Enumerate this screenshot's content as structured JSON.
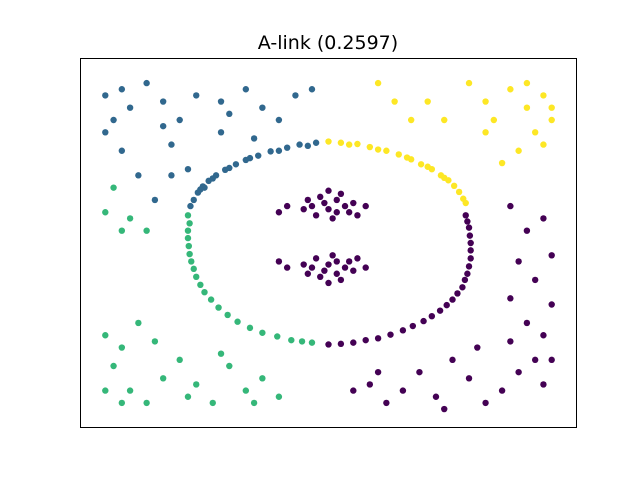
{
  "chart_data": {
    "type": "scatter",
    "title": "A-link (0.2597)",
    "xlabel": "",
    "ylabel": "",
    "xlim": [
      -3,
      3
    ],
    "ylim": [
      -3,
      3
    ],
    "x_ticks": [],
    "y_ticks": [],
    "grid": false,
    "legend": "none",
    "colors": {
      "cluster_purple": "#440154",
      "cluster_blue": "#31688e",
      "cluster_green": "#35b779",
      "cluster_yellow": "#fde725"
    },
    "series": [
      {
        "color_key": "cluster_blue",
        "points": [
          [
            -2.7,
            2.4
          ],
          [
            -2.5,
            2.5
          ],
          [
            -2.4,
            2.2
          ],
          [
            -2.2,
            2.6
          ],
          [
            -2.0,
            2.3
          ],
          [
            -1.8,
            2.0
          ],
          [
            -1.6,
            2.4
          ],
          [
            -1.3,
            2.3
          ],
          [
            -1.0,
            2.5
          ],
          [
            -0.8,
            2.2
          ],
          [
            -0.6,
            2.0
          ],
          [
            -0.4,
            2.4
          ],
          [
            -0.2,
            2.5
          ],
          [
            -2.7,
            1.8
          ],
          [
            -2.5,
            1.5
          ],
          [
            -2.3,
            1.1
          ],
          [
            -2.1,
            0.7
          ],
          [
            -1.9,
            1.6
          ],
          [
            -1.7,
            1.2
          ],
          [
            -1.5,
            0.9
          ],
          [
            -1.3,
            1.8
          ],
          [
            -2.6,
            2.0
          ],
          [
            -2.0,
            1.9
          ],
          [
            -1.9,
            1.1
          ],
          [
            -1.2,
            2.1
          ],
          [
            -0.9,
            1.7
          ],
          [
            -0.35,
            1.6
          ],
          [
            -0.7,
            1.49
          ],
          [
            -1.0,
            1.35
          ],
          [
            -1.25,
            1.19
          ],
          [
            -1.45,
            1.01
          ],
          [
            -1.58,
            0.82
          ],
          [
            -1.67,
            0.6
          ],
          [
            -0.15,
            1.63
          ],
          [
            -0.5,
            1.55
          ],
          [
            -0.85,
            1.42
          ],
          [
            -1.12,
            1.28
          ],
          [
            -1.36,
            1.1
          ],
          [
            -1.52,
            0.92
          ],
          [
            -1.63,
            0.7
          ],
          [
            -0.25,
            1.58
          ],
          [
            -0.6,
            1.5
          ],
          [
            -0.95,
            1.38
          ],
          [
            -1.2,
            1.22
          ],
          [
            -1.4,
            1.05
          ],
          [
            -1.55,
            0.87
          ]
        ]
      },
      {
        "color_key": "cluster_yellow",
        "points": [
          [
            0.6,
            2.6
          ],
          [
            0.8,
            2.3
          ],
          [
            1.0,
            2.0
          ],
          [
            1.2,
            2.3
          ],
          [
            1.4,
            2.0
          ],
          [
            1.7,
            2.6
          ],
          [
            1.9,
            2.3
          ],
          [
            2.0,
            2.0
          ],
          [
            2.2,
            2.5
          ],
          [
            2.4,
            2.2
          ],
          [
            2.6,
            2.4
          ],
          [
            2.7,
            2.0
          ],
          [
            2.5,
            1.8
          ],
          [
            2.3,
            1.5
          ],
          [
            2.1,
            1.3
          ],
          [
            2.6,
            1.6
          ],
          [
            1.9,
            1.8
          ],
          [
            2.4,
            2.6
          ],
          [
            2.7,
            2.2
          ],
          [
            0.0,
            1.65
          ],
          [
            0.35,
            1.61
          ],
          [
            0.7,
            1.5
          ],
          [
            1.0,
            1.36
          ],
          [
            1.25,
            1.2
          ],
          [
            1.45,
            1.02
          ],
          [
            1.58,
            0.83
          ],
          [
            1.66,
            0.65
          ],
          [
            0.15,
            1.63
          ],
          [
            0.5,
            1.56
          ],
          [
            0.85,
            1.44
          ],
          [
            1.12,
            1.28
          ],
          [
            1.36,
            1.1
          ],
          [
            1.52,
            0.93
          ],
          [
            1.63,
            0.72
          ],
          [
            0.25,
            1.6
          ],
          [
            0.6,
            1.52
          ],
          [
            0.95,
            1.39
          ],
          [
            1.2,
            1.24
          ],
          [
            1.4,
            1.06
          ]
        ]
      },
      {
        "color_key": "cluster_green",
        "points": [
          [
            -2.7,
            -1.5
          ],
          [
            -2.5,
            -1.7
          ],
          [
            -2.3,
            -1.3
          ],
          [
            -2.6,
            -2.0
          ],
          [
            -2.4,
            -2.4
          ],
          [
            -2.2,
            -2.6
          ],
          [
            -2.0,
            -2.2
          ],
          [
            -1.8,
            -1.9
          ],
          [
            -1.6,
            -2.3
          ],
          [
            -1.4,
            -2.6
          ],
          [
            -1.2,
            -2.0
          ],
          [
            -1.0,
            -2.4
          ],
          [
            -0.8,
            -2.2
          ],
          [
            -0.6,
            -2.5
          ],
          [
            -2.7,
            -2.4
          ],
          [
            -2.1,
            -1.6
          ],
          [
            -1.7,
            -2.5
          ],
          [
            -1.3,
            -1.8
          ],
          [
            -0.9,
            -2.6
          ],
          [
            -2.5,
            -2.6
          ],
          [
            -2.7,
            0.5
          ],
          [
            -2.6,
            0.9
          ],
          [
            -2.4,
            0.4
          ],
          [
            -2.2,
            0.2
          ],
          [
            -2.5,
            0.2
          ],
          [
            -1.7,
            0.45
          ],
          [
            -1.7,
            0.2
          ],
          [
            -1.69,
            -0.05
          ],
          [
            -1.66,
            -0.3
          ],
          [
            -1.6,
            -0.55
          ],
          [
            -1.5,
            -0.8
          ],
          [
            -1.33,
            -1.05
          ],
          [
            -1.1,
            -1.28
          ],
          [
            -0.8,
            -1.46
          ],
          [
            -0.45,
            -1.58
          ],
          [
            -0.2,
            -1.62
          ],
          [
            -1.68,
            0.32
          ],
          [
            -1.7,
            0.08
          ],
          [
            -1.68,
            -0.18
          ],
          [
            -1.63,
            -0.42
          ],
          [
            -1.55,
            -0.68
          ],
          [
            -1.42,
            -0.92
          ],
          [
            -1.22,
            -1.17
          ],
          [
            -0.95,
            -1.38
          ],
          [
            -0.62,
            -1.52
          ],
          [
            -0.32,
            -1.6
          ]
        ]
      },
      {
        "color_key": "cluster_purple",
        "points": [
          [
            0.0,
            -1.65
          ],
          [
            0.3,
            -1.62
          ],
          [
            0.6,
            -1.55
          ],
          [
            0.9,
            -1.42
          ],
          [
            1.15,
            -1.27
          ],
          [
            1.35,
            -1.1
          ],
          [
            1.5,
            -0.92
          ],
          [
            1.62,
            -0.72
          ],
          [
            1.68,
            -0.5
          ],
          [
            1.72,
            -0.25
          ],
          [
            1.72,
            0.0
          ],
          [
            1.7,
            0.25
          ],
          [
            1.66,
            0.45
          ],
          [
            0.15,
            -1.64
          ],
          [
            0.45,
            -1.58
          ],
          [
            0.75,
            -1.49
          ],
          [
            1.02,
            -1.35
          ],
          [
            1.25,
            -1.19
          ],
          [
            1.43,
            -1.01
          ],
          [
            1.56,
            -0.82
          ],
          [
            1.65,
            -0.6
          ],
          [
            1.7,
            -0.38
          ],
          [
            1.72,
            -0.12
          ],
          [
            1.71,
            0.12
          ],
          [
            1.68,
            0.35
          ],
          [
            -0.2,
            0.6
          ],
          [
            -0.1,
            0.75
          ],
          [
            0.0,
            0.55
          ],
          [
            0.1,
            0.7
          ],
          [
            0.2,
            0.6
          ],
          [
            -0.15,
            0.45
          ],
          [
            0.05,
            0.4
          ],
          [
            0.15,
            0.8
          ],
          [
            -0.25,
            0.7
          ],
          [
            0.25,
            0.5
          ],
          [
            -0.05,
            0.65
          ],
          [
            0.1,
            0.5
          ],
          [
            -0.3,
            0.55
          ],
          [
            0.3,
            0.65
          ],
          [
            0.0,
            0.85
          ],
          [
            -0.5,
            0.6
          ],
          [
            0.45,
            0.6
          ],
          [
            -0.6,
            0.5
          ],
          [
            0.35,
            0.45
          ],
          [
            -0.2,
            -0.4
          ],
          [
            -0.1,
            -0.55
          ],
          [
            0.0,
            -0.35
          ],
          [
            0.1,
            -0.5
          ],
          [
            0.2,
            -0.4
          ],
          [
            -0.15,
            -0.25
          ],
          [
            0.05,
            -0.2
          ],
          [
            0.15,
            -0.6
          ],
          [
            -0.25,
            -0.5
          ],
          [
            0.25,
            -0.3
          ],
          [
            -0.05,
            -0.45
          ],
          [
            0.1,
            -0.3
          ],
          [
            -0.3,
            -0.35
          ],
          [
            0.3,
            -0.45
          ],
          [
            0.0,
            -0.65
          ],
          [
            -0.5,
            -0.4
          ],
          [
            0.45,
            -0.4
          ],
          [
            -0.6,
            -0.3
          ],
          [
            0.35,
            -0.25
          ],
          [
            2.2,
            0.6
          ],
          [
            2.4,
            0.2
          ],
          [
            2.6,
            0.4
          ],
          [
            2.3,
            -0.3
          ],
          [
            2.5,
            -0.6
          ],
          [
            2.7,
            -0.2
          ],
          [
            2.2,
            -0.9
          ],
          [
            2.4,
            -1.3
          ],
          [
            2.6,
            -1.5
          ],
          [
            2.7,
            -1.0
          ],
          [
            2.5,
            -1.9
          ],
          [
            2.3,
            -2.1
          ],
          [
            2.1,
            -2.4
          ],
          [
            1.9,
            -2.6
          ],
          [
            1.7,
            -2.2
          ],
          [
            1.5,
            -1.9
          ],
          [
            1.3,
            -2.5
          ],
          [
            1.1,
            -2.1
          ],
          [
            0.9,
            -2.4
          ],
          [
            0.7,
            -2.6
          ],
          [
            0.5,
            -2.3
          ],
          [
            0.3,
            -2.4
          ],
          [
            2.6,
            -2.3
          ],
          [
            2.2,
            -1.6
          ],
          [
            1.8,
            -1.7
          ],
          [
            2.7,
            -1.9
          ],
          [
            1.4,
            -2.7
          ],
          [
            0.6,
            -2.1
          ]
        ]
      }
    ]
  }
}
